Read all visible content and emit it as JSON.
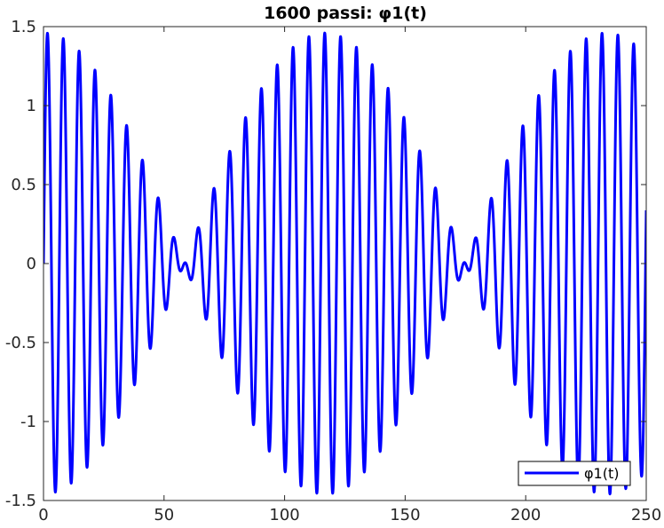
{
  "chart_data": {
    "type": "line",
    "title": "1600 passi: φ1(t)",
    "xlabel": "",
    "ylabel": "",
    "xlim": [
      0,
      250
    ],
    "ylim": [
      -1.5,
      1.5
    ],
    "x_ticks": [
      0,
      50,
      100,
      150,
      200,
      250
    ],
    "y_ticks": [
      -1.5,
      -1,
      -0.5,
      0,
      0.5,
      1,
      1.5
    ],
    "x_tick_labels": [
      "0",
      "50",
      "100",
      "150",
      "200",
      "250"
    ],
    "y_tick_labels": [
      "-1.5",
      "-1",
      "-0.5",
      "0",
      "0.5",
      "1",
      "1.5"
    ],
    "grid": false,
    "legend_position": "bottom-right",
    "series": [
      {
        "name": "φ1(t)",
        "color": "#0000ff",
        "model": {
          "components": [
            {
              "amplitude": 0.73,
              "frequency": 0.15645,
              "phase": 0
            },
            {
              "amplitude": 0.73,
              "frequency": 0.14788,
              "phase": 0
            }
          ]
        }
      }
    ]
  }
}
